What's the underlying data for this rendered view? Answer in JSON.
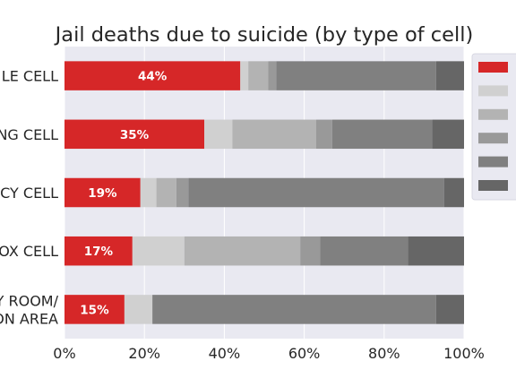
{
  "chart_data": {
    "type": "bar",
    "orientation": "horizontal",
    "stacked": true,
    "title": "Jail deaths due to suicide (by type of cell)",
    "categories": [
      "LE CELL",
      "NG CELL",
      "CY CELL",
      "OX CELL",
      "Y ROOM/\nON AREA"
    ],
    "series": [
      {
        "color": "#d62728",
        "values": [
          44,
          35,
          19,
          17,
          15
        ]
      },
      {
        "color": "#d0d0d0",
        "values": [
          2,
          7,
          4,
          13,
          7
        ]
      },
      {
        "color": "#b3b3b3",
        "values": [
          5,
          21,
          5,
          29,
          0
        ]
      },
      {
        "color": "#999999",
        "values": [
          2,
          4,
          3,
          5,
          0
        ]
      },
      {
        "color": "#808080",
        "values": [
          40,
          25,
          64,
          22,
          71
        ]
      },
      {
        "color": "#666666",
        "values": [
          7,
          8,
          5,
          14,
          7
        ]
      }
    ],
    "data_labels": [
      "44%",
      "35%",
      "19%",
      "17%",
      "15%"
    ],
    "xlim": [
      0,
      100
    ],
    "xticks": [
      "0%",
      "20%",
      "40%",
      "60%",
      "80%",
      "100%"
    ],
    "grid": true,
    "legend": {
      "placement": "right"
    },
    "colors": {
      "background": "#e9e9f1",
      "grid": "#ffffff",
      "text": "#262626"
    }
  }
}
